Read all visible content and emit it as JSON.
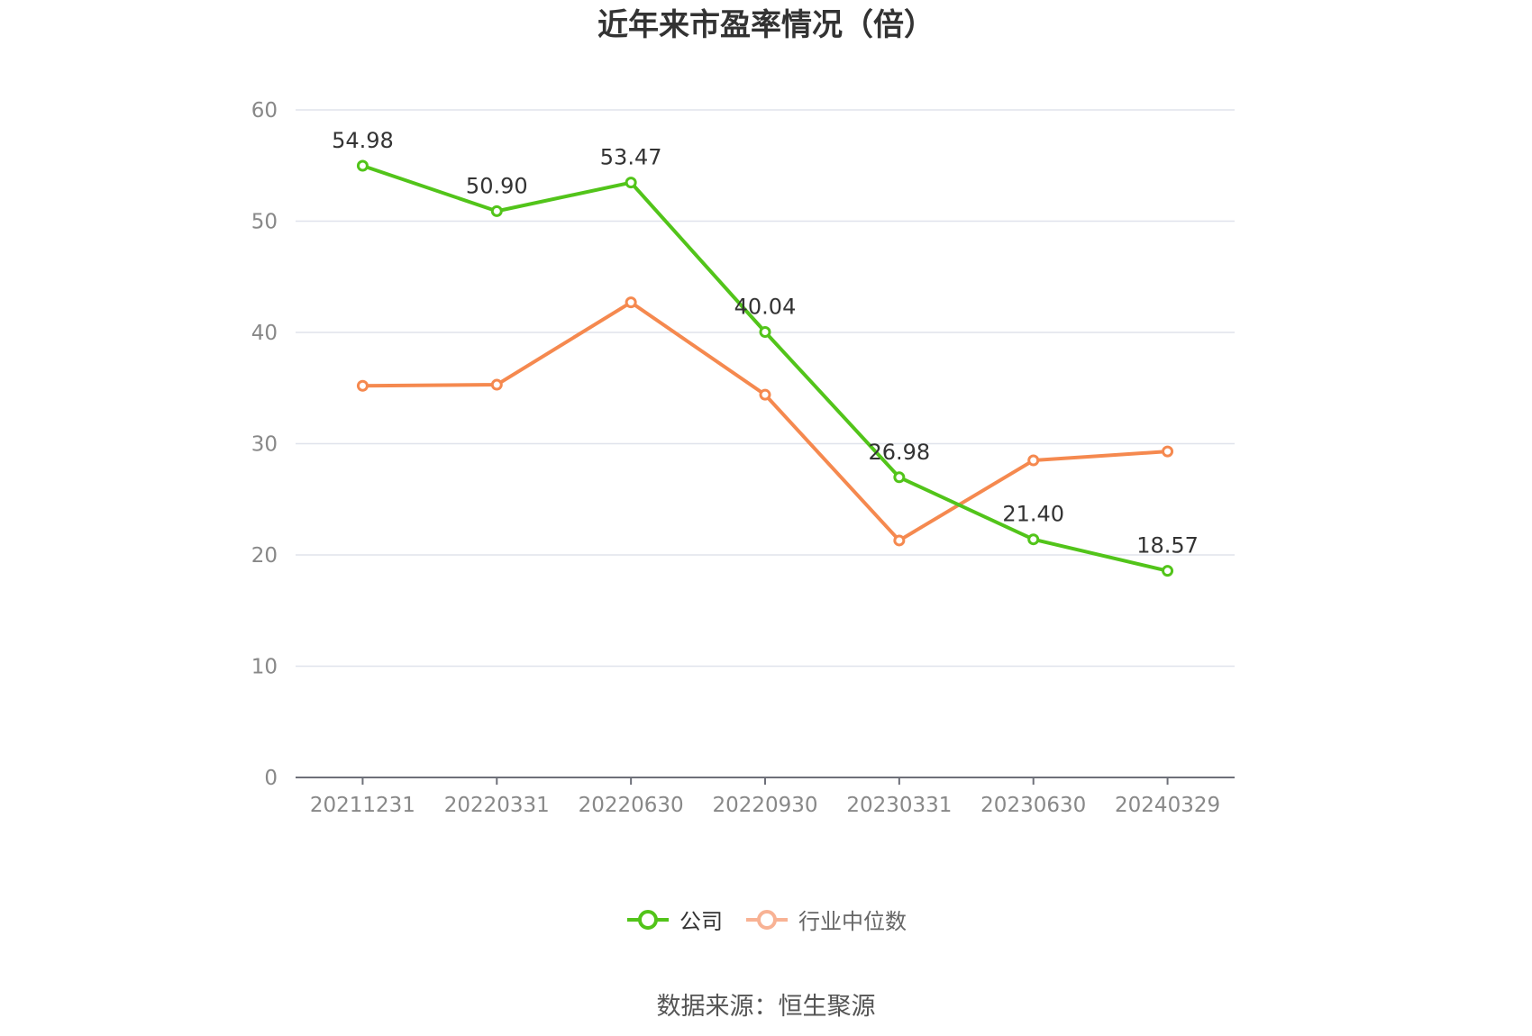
{
  "chart_data": {
    "type": "line",
    "title": "近年来市盈率情况（倍）",
    "categories": [
      "20211231",
      "20220331",
      "20220630",
      "20220930",
      "20230331",
      "20230630",
      "20240329"
    ],
    "ylim": [
      0,
      60
    ],
    "yticks": [
      0,
      10,
      20,
      30,
      40,
      50,
      60
    ],
    "grid": true,
    "legend_position": "bottom",
    "series": [
      {
        "name": "公司",
        "color": "#52c41a",
        "values": [
          54.98,
          50.9,
          53.47,
          40.04,
          26.98,
          21.4,
          18.57
        ],
        "labels": [
          "54.98",
          "50.90",
          "53.47",
          "40.04",
          "26.98",
          "21.40",
          "18.57"
        ],
        "show_labels": true
      },
      {
        "name": "行业中位数",
        "color": "#f5894f",
        "values": [
          35.2,
          35.3,
          42.7,
          34.4,
          21.3,
          28.5,
          29.3
        ],
        "show_labels": false
      }
    ],
    "source": "数据来源：恒生聚源"
  },
  "legend": {
    "items": [
      {
        "name": "公司",
        "swatch_color": "#52c41a",
        "text_color": "#333333"
      },
      {
        "name": "行业中位数",
        "swatch_color": "#f8b294",
        "text_color": "#666666"
      }
    ]
  }
}
